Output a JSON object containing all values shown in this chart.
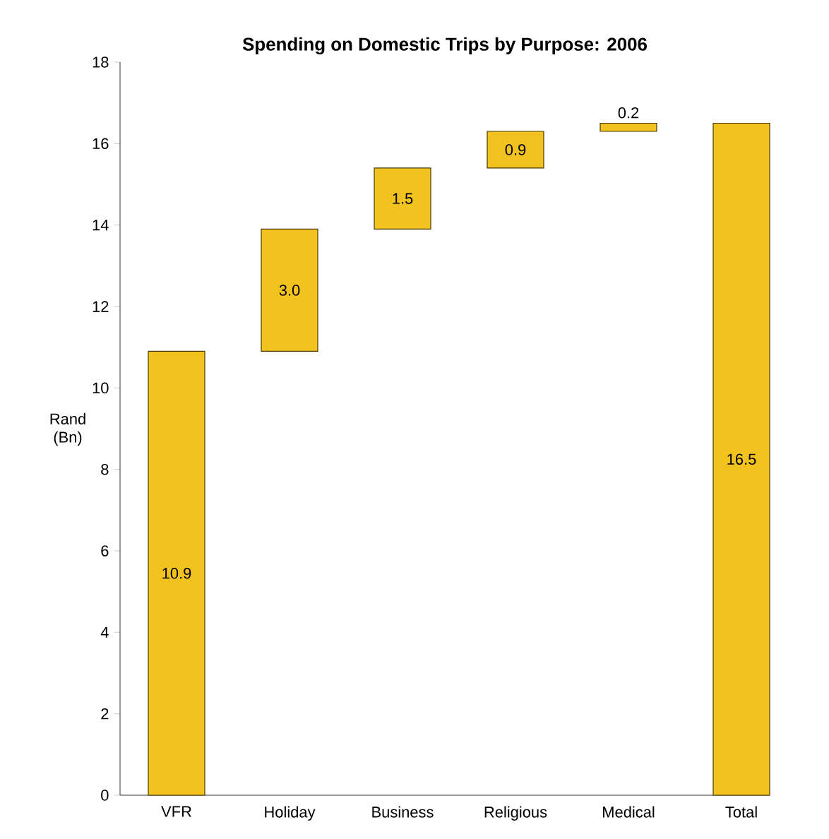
{
  "chart_data": {
    "type": "bar",
    "title": "Spending on Domestic Trips by Purpose: 2006",
    "ylabel": "Rand (Bn)",
    "categories": [
      "VFR",
      "Holiday",
      "Business",
      "Religious",
      "Medical",
      "Total"
    ],
    "values": [
      10.9,
      3.0,
      1.5,
      0.9,
      0.2,
      16.5
    ],
    "base": [
      0,
      10.9,
      13.9,
      15.4,
      16.3,
      0
    ],
    "value_labels": [
      "10.9",
      "3.0",
      "1.5",
      "0.9",
      "0.2",
      "16.5"
    ],
    "color": "#f2c21f",
    "grid": false,
    "ylim": [
      0,
      18
    ],
    "yticks": [
      0,
      2,
      4,
      6,
      8,
      10,
      12,
      14,
      16,
      18
    ]
  }
}
